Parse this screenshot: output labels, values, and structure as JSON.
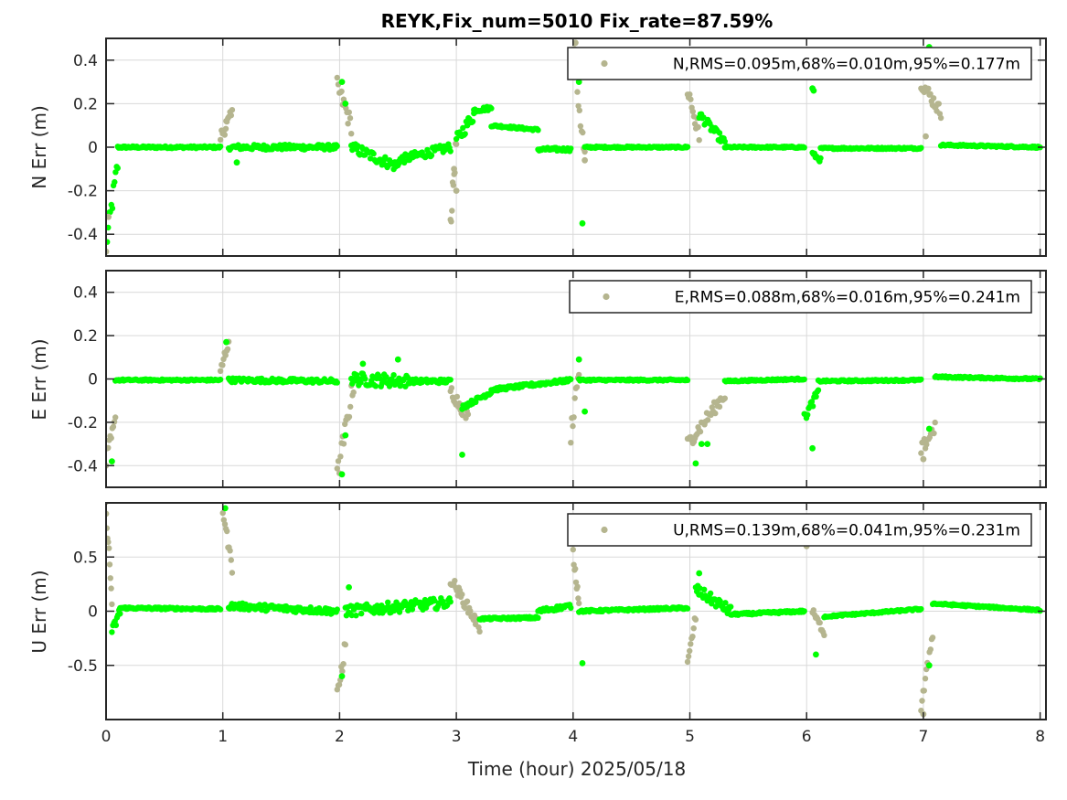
{
  "chart_data": {
    "title": "REYK,Fix_num=5010 Fix_rate=87.59%",
    "xlabel": "Time (hour)  2025/05/18",
    "xlim": [
      0,
      8.05
    ],
    "xticks": [
      0,
      1,
      2,
      3,
      4,
      5,
      6,
      7,
      8
    ],
    "grid": true,
    "colors": {
      "float": "#b5b58f",
      "fix": "#00ff00"
    },
    "panels": [
      {
        "type": "scatter",
        "ylabel": "N Err (m)",
        "ylim": [
          -0.5,
          0.5
        ],
        "yticks": [
          0.4,
          0.2,
          0,
          -0.2,
          -0.4
        ],
        "yticklabels": [
          "0.4",
          "0.2",
          "0",
          "-0.2",
          "-0.4"
        ],
        "legend": "N,RMS=0.095m,68%=0.010m,95%=0.177m",
        "legend_position": "top-right",
        "segments": [
          {
            "x0": 0.0,
            "x1": 0.1,
            "y0": -0.45,
            "y1": -0.08,
            "noise": 0.05,
            "color": "fix"
          },
          {
            "x0": 0.1,
            "x1": 0.98,
            "y0": 0.0,
            "y1": 0.0,
            "noise": 0.005,
            "color": "fix"
          },
          {
            "x0": 0.98,
            "x1": 1.08,
            "y0": 0.05,
            "y1": 0.15,
            "noise": 0.03,
            "color": "float"
          },
          {
            "x0": 1.05,
            "x1": 1.98,
            "y0": 0.0,
            "y1": 0.0,
            "noise": 0.012,
            "color": "fix"
          },
          {
            "x0": 1.98,
            "x1": 2.1,
            "y0": 0.28,
            "y1": 0.1,
            "noise": 0.04,
            "color": "float"
          },
          {
            "x0": 2.1,
            "x1": 2.5,
            "y0": 0.0,
            "y1": -0.09,
            "noise": 0.025,
            "color": "fix"
          },
          {
            "x0": 2.5,
            "x1": 2.95,
            "y0": -0.06,
            "y1": 0.0,
            "noise": 0.02,
            "color": "fix"
          },
          {
            "x0": 2.95,
            "x1": 3.0,
            "y0": -0.35,
            "y1": 0.02,
            "noise": 0.05,
            "color": "float"
          },
          {
            "x0": 3.0,
            "x1": 3.15,
            "y0": 0.03,
            "y1": 0.15,
            "noise": 0.03,
            "color": "fix"
          },
          {
            "x0": 3.15,
            "x1": 3.3,
            "y0": 0.17,
            "y1": 0.18,
            "noise": 0.01,
            "color": "fix"
          },
          {
            "x0": 3.3,
            "x1": 3.7,
            "y0": 0.1,
            "y1": 0.08,
            "noise": 0.005,
            "color": "fix"
          },
          {
            "x0": 3.7,
            "x1": 3.98,
            "y0": -0.01,
            "y1": -0.01,
            "noise": 0.008,
            "color": "fix"
          },
          {
            "x0": 4.0,
            "x1": 4.1,
            "y0": 0.45,
            "y1": -0.05,
            "noise": 0.06,
            "color": "float"
          },
          {
            "x0": 4.1,
            "x1": 4.98,
            "y0": 0.0,
            "y1": 0.0,
            "noise": 0.004,
            "color": "fix"
          },
          {
            "x0": 4.98,
            "x1": 5.08,
            "y0": 0.27,
            "y1": 0.05,
            "noise": 0.05,
            "color": "float"
          },
          {
            "x0": 5.08,
            "x1": 5.3,
            "y0": 0.15,
            "y1": 0.02,
            "noise": 0.02,
            "color": "fix"
          },
          {
            "x0": 5.3,
            "x1": 5.98,
            "y0": 0.0,
            "y1": 0.0,
            "noise": 0.004,
            "color": "fix"
          },
          {
            "x0": 6.05,
            "x1": 6.12,
            "y0": -0.03,
            "y1": -0.06,
            "noise": 0.01,
            "color": "fix"
          },
          {
            "x0": 6.12,
            "x1": 6.98,
            "y0": -0.005,
            "y1": -0.005,
            "noise": 0.004,
            "color": "fix"
          },
          {
            "x0": 6.98,
            "x1": 7.15,
            "y0": 0.3,
            "y1": 0.16,
            "noise": 0.03,
            "color": "float"
          },
          {
            "x0": 7.15,
            "x1": 8.0,
            "y0": 0.01,
            "y1": 0.0,
            "noise": 0.004,
            "color": "fix"
          }
        ],
        "points": [
          {
            "x": 0.0,
            "y": -0.48,
            "color": "float"
          },
          {
            "x": 0.02,
            "y": -0.32,
            "color": "float"
          },
          {
            "x": 1.03,
            "y": 0.12,
            "color": "float"
          },
          {
            "x": 1.12,
            "y": -0.07,
            "color": "fix"
          },
          {
            "x": 2.02,
            "y": 0.3,
            "color": "fix"
          },
          {
            "x": 2.05,
            "y": 0.2,
            "color": "fix"
          },
          {
            "x": 2.98,
            "y": -0.1,
            "color": "float"
          },
          {
            "x": 3.0,
            "y": -0.2,
            "color": "float"
          },
          {
            "x": 4.02,
            "y": 0.48,
            "color": "float"
          },
          {
            "x": 4.05,
            "y": 0.3,
            "color": "fix"
          },
          {
            "x": 4.08,
            "y": -0.35,
            "color": "fix"
          },
          {
            "x": 4.1,
            "y": -0.06,
            "color": "float"
          },
          {
            "x": 6.05,
            "y": 0.27,
            "color": "fix"
          },
          {
            "x": 6.06,
            "y": 0.26,
            "color": "fix"
          },
          {
            "x": 7.05,
            "y": 0.46,
            "color": "fix"
          },
          {
            "x": 7.02,
            "y": 0.05,
            "color": "float"
          }
        ]
      },
      {
        "type": "scatter",
        "ylabel": "E Err (m)",
        "ylim": [
          -0.5,
          0.5
        ],
        "yticks": [
          0.4,
          0.2,
          0,
          -0.2,
          -0.4
        ],
        "yticklabels": [
          "0.4",
          "0.2",
          "0",
          "-0.2",
          "-0.4"
        ],
        "legend": "E,RMS=0.088m,68%=0.016m,95%=0.241m",
        "legend_position": "top-right",
        "segments": [
          {
            "x0": 0.0,
            "x1": 0.08,
            "y0": -0.38,
            "y1": -0.2,
            "noise": 0.04,
            "color": "float"
          },
          {
            "x0": 0.08,
            "x1": 0.98,
            "y0": -0.005,
            "y1": -0.005,
            "noise": 0.004,
            "color": "fix"
          },
          {
            "x0": 0.98,
            "x1": 1.05,
            "y0": 0.03,
            "y1": 0.18,
            "noise": 0.03,
            "color": "float"
          },
          {
            "x0": 1.05,
            "x1": 1.98,
            "y0": -0.005,
            "y1": -0.01,
            "noise": 0.01,
            "color": "fix"
          },
          {
            "x0": 1.98,
            "x1": 2.12,
            "y0": -0.45,
            "y1": -0.02,
            "noise": 0.05,
            "color": "float"
          },
          {
            "x0": 2.1,
            "x1": 2.6,
            "y0": 0.0,
            "y1": -0.01,
            "noise": 0.03,
            "color": "fix"
          },
          {
            "x0": 2.6,
            "x1": 2.95,
            "y0": -0.01,
            "y1": -0.01,
            "noise": 0.01,
            "color": "fix"
          },
          {
            "x0": 2.95,
            "x1": 3.1,
            "y0": -0.05,
            "y1": -0.18,
            "noise": 0.03,
            "color": "float"
          },
          {
            "x0": 3.05,
            "x1": 3.3,
            "y0": -0.13,
            "y1": -0.06,
            "noise": 0.01,
            "color": "fix"
          },
          {
            "x0": 3.3,
            "x1": 3.98,
            "y0": -0.05,
            "y1": -0.005,
            "noise": 0.008,
            "color": "fix"
          },
          {
            "x0": 3.98,
            "x1": 4.05,
            "y0": -0.25,
            "y1": 0.05,
            "noise": 0.05,
            "color": "float"
          },
          {
            "x0": 4.05,
            "x1": 4.98,
            "y0": -0.005,
            "y1": -0.005,
            "noise": 0.004,
            "color": "fix"
          },
          {
            "x0": 4.98,
            "x1": 5.3,
            "y0": -0.3,
            "y1": -0.07,
            "noise": 0.03,
            "color": "float"
          },
          {
            "x0": 5.3,
            "x1": 5.98,
            "y0": -0.01,
            "y1": 0.0,
            "noise": 0.004,
            "color": "fix"
          },
          {
            "x0": 5.98,
            "x1": 6.1,
            "y0": -0.18,
            "y1": -0.06,
            "noise": 0.02,
            "color": "fix"
          },
          {
            "x0": 6.1,
            "x1": 6.98,
            "y0": -0.01,
            "y1": -0.005,
            "noise": 0.004,
            "color": "fix"
          },
          {
            "x0": 6.98,
            "x1": 7.1,
            "y0": -0.33,
            "y1": -0.22,
            "noise": 0.03,
            "color": "float"
          },
          {
            "x0": 7.1,
            "x1": 8.0,
            "y0": 0.01,
            "y1": 0.0,
            "noise": 0.004,
            "color": "fix"
          }
        ],
        "points": [
          {
            "x": 0.05,
            "y": -0.38,
            "color": "fix"
          },
          {
            "x": 1.03,
            "y": 0.17,
            "color": "fix"
          },
          {
            "x": 2.02,
            "y": -0.44,
            "color": "fix"
          },
          {
            "x": 2.05,
            "y": -0.26,
            "color": "fix"
          },
          {
            "x": 2.2,
            "y": 0.07,
            "color": "fix"
          },
          {
            "x": 2.5,
            "y": 0.09,
            "color": "fix"
          },
          {
            "x": 3.05,
            "y": -0.35,
            "color": "fix"
          },
          {
            "x": 4.05,
            "y": 0.09,
            "color": "fix"
          },
          {
            "x": 4.1,
            "y": -0.15,
            "color": "fix"
          },
          {
            "x": 5.05,
            "y": -0.39,
            "color": "fix"
          },
          {
            "x": 5.1,
            "y": -0.3,
            "color": "fix"
          },
          {
            "x": 5.15,
            "y": -0.3,
            "color": "fix"
          },
          {
            "x": 6.05,
            "y": -0.32,
            "color": "fix"
          },
          {
            "x": 7.05,
            "y": -0.23,
            "color": "fix"
          },
          {
            "x": 7.0,
            "y": -0.37,
            "color": "float"
          }
        ]
      },
      {
        "type": "scatter",
        "ylabel": "U Err (m)",
        "ylim": [
          -1.0,
          1.0
        ],
        "yticks": [
          0.5,
          0,
          -0.5
        ],
        "yticklabels": [
          "0.5",
          "0",
          "-0.5"
        ],
        "legend": "U,RMS=0.139m,68%=0.041m,95%=0.231m",
        "legend_position": "top-right",
        "segments": [
          {
            "x0": 0.0,
            "x1": 0.05,
            "y0": 0.95,
            "y1": 0.1,
            "noise": 0.08,
            "color": "float"
          },
          {
            "x0": 0.05,
            "x1": 0.12,
            "y0": -0.2,
            "y1": 0.0,
            "noise": 0.05,
            "color": "fix"
          },
          {
            "x0": 0.12,
            "x1": 0.98,
            "y0": 0.03,
            "y1": 0.02,
            "noise": 0.01,
            "color": "fix"
          },
          {
            "x0": 1.0,
            "x1": 1.08,
            "y0": 0.93,
            "y1": 0.4,
            "noise": 0.05,
            "color": "float"
          },
          {
            "x0": 1.05,
            "x1": 1.98,
            "y0": 0.05,
            "y1": 0.0,
            "noise": 0.03,
            "color": "fix"
          },
          {
            "x0": 1.98,
            "x1": 2.05,
            "y0": -0.8,
            "y1": -0.3,
            "noise": 0.08,
            "color": "float"
          },
          {
            "x0": 2.05,
            "x1": 2.95,
            "y0": 0.0,
            "y1": 0.08,
            "noise": 0.05,
            "color": "fix"
          },
          {
            "x0": 2.95,
            "x1": 3.2,
            "y0": 0.3,
            "y1": -0.15,
            "noise": 0.05,
            "color": "float"
          },
          {
            "x0": 3.2,
            "x1": 3.7,
            "y0": -0.07,
            "y1": -0.06,
            "noise": 0.01,
            "color": "fix"
          },
          {
            "x0": 3.7,
            "x1": 3.98,
            "y0": 0.0,
            "y1": 0.05,
            "noise": 0.02,
            "color": "fix"
          },
          {
            "x0": 4.0,
            "x1": 4.05,
            "y0": 0.52,
            "y1": 0.1,
            "noise": 0.05,
            "color": "float"
          },
          {
            "x0": 4.05,
            "x1": 4.98,
            "y0": 0.0,
            "y1": 0.03,
            "noise": 0.01,
            "color": "fix"
          },
          {
            "x0": 4.98,
            "x1": 5.05,
            "y0": -0.5,
            "y1": -0.05,
            "noise": 0.05,
            "color": "float"
          },
          {
            "x0": 5.05,
            "x1": 5.35,
            "y0": 0.2,
            "y1": 0.0,
            "noise": 0.05,
            "color": "fix"
          },
          {
            "x0": 5.35,
            "x1": 5.98,
            "y0": -0.03,
            "y1": 0.0,
            "noise": 0.01,
            "color": "fix"
          },
          {
            "x0": 6.05,
            "x1": 6.15,
            "y0": 0.0,
            "y1": -0.2,
            "noise": 0.03,
            "color": "float"
          },
          {
            "x0": 6.15,
            "x1": 6.98,
            "y0": -0.05,
            "y1": 0.02,
            "noise": 0.008,
            "color": "fix"
          },
          {
            "x0": 6.98,
            "x1": 7.08,
            "y0": -0.9,
            "y1": -0.2,
            "noise": 0.05,
            "color": "float"
          },
          {
            "x0": 7.08,
            "x1": 8.0,
            "y0": 0.07,
            "y1": 0.01,
            "noise": 0.008,
            "color": "fix"
          }
        ],
        "points": [
          {
            "x": 0.0,
            "y": 0.9,
            "color": "float"
          },
          {
            "x": 1.02,
            "y": 0.95,
            "color": "fix"
          },
          {
            "x": 2.02,
            "y": -0.6,
            "color": "fix"
          },
          {
            "x": 2.08,
            "y": 0.22,
            "color": "fix"
          },
          {
            "x": 4.08,
            "y": -0.48,
            "color": "fix"
          },
          {
            "x": 5.08,
            "y": 0.35,
            "color": "fix"
          },
          {
            "x": 6.0,
            "y": 0.6,
            "color": "float"
          },
          {
            "x": 6.08,
            "y": -0.4,
            "color": "fix"
          },
          {
            "x": 7.05,
            "y": -0.5,
            "color": "fix"
          },
          {
            "x": 7.0,
            "y": -0.95,
            "color": "float"
          }
        ]
      }
    ]
  }
}
